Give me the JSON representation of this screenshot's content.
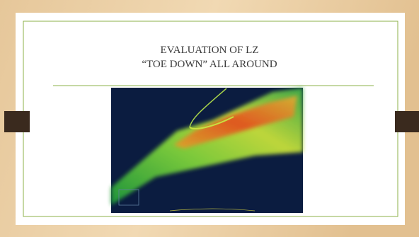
{
  "slide": {
    "title": [
      "EVALUATION OF LZ",
      "“TOE DOWN” ALL AROUND"
    ]
  }
}
